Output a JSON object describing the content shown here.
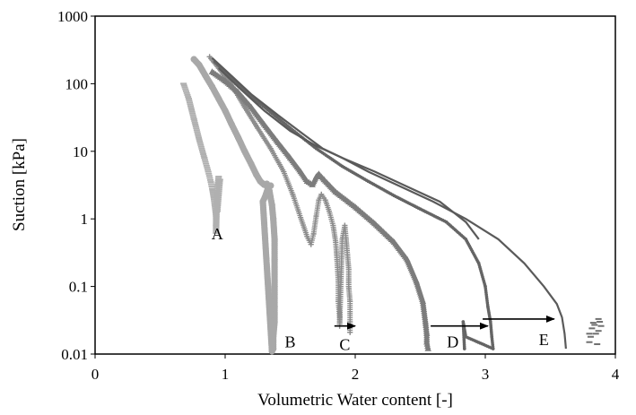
{
  "chart_data": {
    "type": "scatter",
    "title": "",
    "xlabel": "Volumetric Water content [-]",
    "ylabel": "Suction [kPa]",
    "xlim": [
      0,
      4
    ],
    "ylim": [
      0.01,
      1000
    ],
    "y_scale": "log",
    "x_ticks": [
      "0",
      "1",
      "2",
      "3",
      "4"
    ],
    "y_ticks": [
      "0.01",
      "0.1",
      "1",
      "10",
      "100",
      "1000"
    ],
    "grid": false,
    "legend": "none",
    "colors": {
      "A": "#b0b0b0",
      "B": "#a8a8a8",
      "C": "#8c8c8c",
      "D": "#7c7c7c",
      "E": "#656565",
      "upper": "#5a5a5a",
      "arrow": "#000000"
    },
    "series": [
      {
        "name": "A",
        "marker": "dash",
        "points": [
          [
            0.68,
            100
          ],
          [
            0.72,
            60
          ],
          [
            0.76,
            30
          ],
          [
            0.8,
            15
          ],
          [
            0.84,
            8
          ],
          [
            0.87,
            5
          ],
          [
            0.89,
            3.5
          ],
          [
            0.9,
            2.8
          ],
          [
            0.91,
            2.2
          ],
          [
            0.92,
            1.6
          ],
          [
            0.93,
            1.1
          ],
          [
            0.93,
            0.8
          ],
          [
            0.93,
            0.62
          ],
          [
            0.94,
            3
          ],
          [
            0.95,
            4.2
          ],
          [
            0.95,
            3.4
          ],
          [
            0.96,
            3.8
          ],
          [
            0.94,
            1.3
          ]
        ]
      },
      {
        "name": "B",
        "marker": "circle",
        "points": [
          [
            0.76,
            230
          ],
          [
            0.8,
            190
          ],
          [
            0.85,
            130
          ],
          [
            0.9,
            90
          ],
          [
            0.95,
            60
          ],
          [
            1.0,
            40
          ],
          [
            1.05,
            25
          ],
          [
            1.1,
            16
          ],
          [
            1.15,
            10
          ],
          [
            1.2,
            6.5
          ],
          [
            1.24,
            4.5
          ],
          [
            1.27,
            3.6
          ],
          [
            1.3,
            3.2
          ],
          [
            1.32,
            3.3
          ],
          [
            1.34,
            2.6
          ],
          [
            1.36,
            1.6
          ],
          [
            1.37,
            1
          ],
          [
            1.38,
            0.5
          ],
          [
            1.38,
            0.25
          ],
          [
            1.38,
            0.1
          ],
          [
            1.38,
            0.05
          ],
          [
            1.38,
            0.03
          ],
          [
            1.37,
            0.018
          ],
          [
            1.37,
            0.012
          ],
          [
            1.36,
            0.011
          ],
          [
            1.29,
            1.8
          ],
          [
            1.31,
            2.2
          ],
          [
            1.33,
            2.9
          ],
          [
            1.35,
            3.1
          ]
        ]
      },
      {
        "name": "C",
        "marker": "plus",
        "points": [
          [
            0.88,
            250
          ],
          [
            0.95,
            170
          ],
          [
            1.05,
            95
          ],
          [
            1.15,
            45
          ],
          [
            1.25,
            22
          ],
          [
            1.35,
            11
          ],
          [
            1.45,
            5
          ],
          [
            1.52,
            2.3
          ],
          [
            1.58,
            1.05
          ],
          [
            1.63,
            0.55
          ],
          [
            1.66,
            0.42
          ],
          [
            1.68,
            0.6
          ],
          [
            1.7,
            1.1
          ],
          [
            1.72,
            1.9
          ],
          [
            1.74,
            2.3
          ],
          [
            1.77,
            1.9
          ],
          [
            1.8,
            1.3
          ],
          [
            1.83,
            0.8
          ],
          [
            1.85,
            0.45
          ],
          [
            1.86,
            0.25
          ],
          [
            1.87,
            0.12
          ],
          [
            1.87,
            0.06
          ],
          [
            1.88,
            0.035
          ],
          [
            1.88,
            0.026
          ],
          [
            1.9,
            0.5
          ],
          [
            1.92,
            0.8
          ],
          [
            1.93,
            0.5
          ],
          [
            1.94,
            0.3
          ],
          [
            1.95,
            0.18
          ],
          [
            1.95,
            0.1
          ],
          [
            1.96,
            0.06
          ],
          [
            1.96,
            0.03
          ],
          [
            1.96,
            0.021
          ]
        ]
      },
      {
        "name": "D",
        "marker": "triangle",
        "points": [
          [
            0.9,
            150
          ],
          [
            1.0,
            110
          ],
          [
            1.1,
            75
          ],
          [
            1.2,
            45
          ],
          [
            1.3,
            25
          ],
          [
            1.4,
            14
          ],
          [
            1.5,
            8
          ],
          [
            1.58,
            5
          ],
          [
            1.63,
            3.6
          ],
          [
            1.67,
            3.2
          ],
          [
            1.7,
            4.2
          ],
          [
            1.72,
            4.6
          ],
          [
            1.76,
            3.8
          ],
          [
            1.85,
            2.5
          ],
          [
            2.0,
            1.5
          ],
          [
            2.15,
            0.85
          ],
          [
            2.3,
            0.45
          ],
          [
            2.4,
            0.25
          ],
          [
            2.47,
            0.12
          ],
          [
            2.52,
            0.06
          ],
          [
            2.54,
            0.03
          ],
          [
            2.55,
            0.02
          ],
          [
            2.55,
            0.015
          ],
          [
            2.56,
            0.012
          ]
        ]
      },
      {
        "name": "E",
        "marker": "dot",
        "points": [
          [
            0.92,
            210
          ],
          [
            1.0,
            150
          ],
          [
            1.1,
            100
          ],
          [
            1.2,
            65
          ],
          [
            1.35,
            38
          ],
          [
            1.5,
            22
          ],
          [
            1.7,
            11
          ],
          [
            1.9,
            6
          ],
          [
            2.1,
            3.6
          ],
          [
            2.3,
            2.2
          ],
          [
            2.5,
            1.4
          ],
          [
            2.7,
            0.9
          ],
          [
            2.85,
            0.5
          ],
          [
            2.95,
            0.22
          ],
          [
            3.0,
            0.1
          ],
          [
            3.02,
            0.05
          ],
          [
            3.04,
            0.03
          ],
          [
            3.05,
            0.018
          ],
          [
            3.06,
            0.012
          ],
          [
            2.85,
            0.018
          ],
          [
            2.83,
            0.03
          ],
          [
            2.84,
            0.012
          ]
        ]
      },
      {
        "name": "",
        "marker": "line",
        "points": [
          [
            0.9,
            240
          ],
          [
            1.05,
            130
          ],
          [
            1.2,
            70
          ],
          [
            1.4,
            35
          ],
          [
            1.6,
            18
          ],
          [
            1.75,
            11
          ],
          [
            1.9,
            8
          ],
          [
            2.1,
            5
          ],
          [
            2.35,
            3
          ],
          [
            2.6,
            1.8
          ],
          [
            2.85,
            1.0
          ],
          [
            3.1,
            0.5
          ],
          [
            3.3,
            0.22
          ],
          [
            3.45,
            0.1
          ],
          [
            3.55,
            0.055
          ],
          [
            3.59,
            0.035
          ],
          [
            3.61,
            0.02
          ],
          [
            3.62,
            0.012
          ]
        ]
      },
      {
        "name": "",
        "marker": "line",
        "points": [
          [
            0.95,
            170
          ],
          [
            1.1,
            90
          ],
          [
            1.3,
            40
          ],
          [
            1.5,
            20
          ],
          [
            1.7,
            12
          ],
          [
            1.9,
            8
          ],
          [
            2.15,
            5
          ],
          [
            2.4,
            3
          ],
          [
            2.65,
            1.8
          ],
          [
            2.85,
            0.9
          ],
          [
            2.95,
            0.5
          ]
        ]
      },
      {
        "name": "",
        "marker": "dash",
        "points": [
          [
            3.8,
            0.015
          ],
          [
            3.8,
            0.02
          ],
          [
            3.82,
            0.024
          ],
          [
            3.84,
            0.027
          ],
          [
            3.85,
            0.02
          ],
          [
            3.86,
            0.014
          ],
          [
            3.87,
            0.022
          ],
          [
            3.88,
            0.03
          ],
          [
            3.89,
            0.026
          ],
          [
            3.81,
            0.018
          ],
          [
            3.83,
            0.029
          ],
          [
            3.87,
            0.033
          ]
        ]
      }
    ],
    "annotations": [
      {
        "label": "A",
        "x": 0.94,
        "y": 0.5
      },
      {
        "label": "B",
        "x": 1.5,
        "y": 0.0125
      },
      {
        "label": "C",
        "x": 1.92,
        "y": 0.0115
      },
      {
        "label": "D",
        "x": 2.75,
        "y": 0.0125
      },
      {
        "label": "E",
        "x": 3.45,
        "y": 0.0135
      }
    ],
    "arrows": [
      {
        "from": [
          1.84,
          0.026
        ],
        "to": [
          2.0,
          0.026
        ]
      },
      {
        "from": [
          2.58,
          0.026
        ],
        "to": [
          3.02,
          0.026
        ]
      },
      {
        "from": [
          2.98,
          0.033
        ],
        "to": [
          3.53,
          0.033
        ]
      }
    ]
  }
}
